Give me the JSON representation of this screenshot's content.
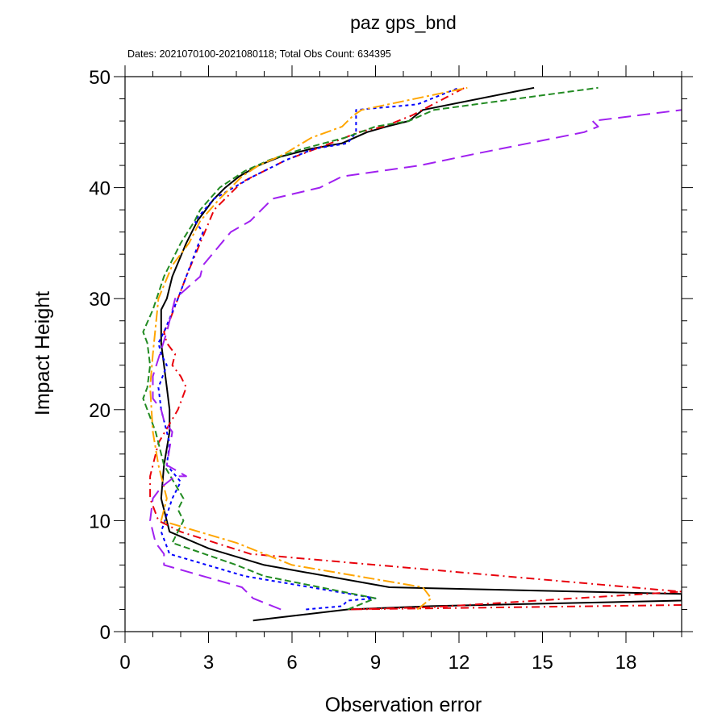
{
  "chart_data": {
    "type": "line",
    "title": "paz gps_bnd",
    "subtitle": "Dates: 2021070100-2021080118; Total Obs Count: 634395",
    "xlabel": "Observation error",
    "ylabel": "Impact Height",
    "xlim": [
      0,
      20
    ],
    "ylim": [
      0,
      50
    ],
    "xticks": [
      0,
      3,
      6,
      9,
      12,
      15,
      18
    ],
    "yticks": [
      0,
      10,
      20,
      30,
      40,
      50
    ],
    "colors": {
      "black": "#000000",
      "red": "#e8000b",
      "blue": "#0000ff",
      "green": "#228b22",
      "orange": "#ffa500",
      "purple": "#a020f0"
    },
    "series": [
      {
        "color": "#000000",
        "dash": "solid",
        "x": [
          4.6,
          8.0,
          11.0,
          20.0,
          20.0,
          9.5,
          5.0,
          3.0,
          1.6,
          1.3,
          1.4,
          1.6,
          1.6,
          1.5,
          1.4,
          1.3,
          1.3,
          1.3,
          1.3,
          1.5,
          1.7,
          2.2,
          2.6,
          2.9,
          3.2,
          3.6,
          4.1,
          4.8,
          5.6,
          6.7,
          7.8,
          8.7,
          9.4,
          10.2,
          10.7,
          14.7
        ],
        "y": [
          1,
          2,
          2.3,
          2.8,
          3.4,
          4,
          6,
          7.5,
          9,
          12,
          15,
          18,
          20,
          22,
          24,
          26,
          27,
          28,
          29,
          30,
          32,
          35,
          37,
          38,
          39,
          40,
          41,
          42,
          42.8,
          43.5,
          44,
          45,
          45.5,
          46,
          47,
          49
        ]
      },
      {
        "color": "#e8000b",
        "dash": "10,5,2,5",
        "x": [
          20.0,
          8.0,
          11.0,
          20.0,
          4.5,
          2.0,
          1.2,
          0.9,
          0.9,
          1.2,
          1.9,
          2.2,
          2.0,
          1.7,
          1.8,
          1.5,
          1.4,
          1.6,
          2.2,
          3.2,
          4.2,
          5.8,
          7.6,
          8.4,
          9.3,
          10.3,
          12.2
        ],
        "y": [
          2.4,
          2.0,
          2.2,
          3.6,
          7,
          9,
          10,
          12,
          14,
          17,
          20,
          22,
          23,
          24,
          25,
          26,
          27,
          28,
          32,
          38,
          40.5,
          42.5,
          44.2,
          45,
          45.5,
          46.5,
          49
        ]
      },
      {
        "color": "#0000ff",
        "dash": "4,4",
        "x": [
          6.5,
          7.8,
          8.0,
          9.0,
          4.3,
          1.6,
          1.3,
          1.7,
          2.0,
          1.5,
          1.6,
          1.3,
          1.2,
          1.5,
          1.3,
          1.2,
          1.4,
          1.9,
          2.8,
          2.5,
          3.2,
          4.6,
          5.8,
          6.8,
          8.0,
          8.3,
          8.3,
          10.5,
          12.0
        ],
        "y": [
          2,
          2.3,
          2.8,
          3,
          5,
          7,
          9,
          12,
          13.5,
          15,
          17,
          20,
          22,
          24,
          25,
          26,
          27,
          30,
          36,
          37,
          39,
          41,
          42.5,
          43.5,
          44,
          45,
          47,
          47.5,
          49
        ]
      },
      {
        "color": "#228b22",
        "dash": "8,4",
        "x": [
          8.0,
          9.0,
          5.0,
          4.0,
          1.7,
          2.1,
          1.9,
          2.1,
          1.4,
          1.1,
          0.8,
          0.65,
          0.8,
          0.9,
          0.8,
          0.65,
          1.0,
          1.4,
          2.0,
          2.5,
          2.7,
          3.4,
          4.3,
          5.2,
          6.4,
          7.9,
          9.0,
          10.2,
          11.1,
          17.0
        ],
        "y": [
          2,
          3,
          5,
          6,
          8,
          10,
          11,
          12,
          15,
          18,
          20,
          21,
          22,
          24,
          26,
          27,
          29,
          32,
          35,
          37,
          38,
          40,
          41.5,
          42.5,
          43.5,
          44.5,
          45.5,
          46,
          47,
          49
        ]
      },
      {
        "color": "#ffa500",
        "dash": "14,4,3,4",
        "x": [
          10.5,
          11.0,
          10.7,
          6.0,
          4.0,
          1.3,
          1.5,
          1.2,
          1.0,
          0.9,
          1.0,
          1.2,
          1.7,
          2.3,
          2.7,
          3.4,
          4.2,
          4.8,
          5.7,
          6.7,
          7.8,
          8.2,
          8.5,
          12.3
        ],
        "y": [
          2,
          3,
          4,
          6,
          8,
          10,
          12,
          15,
          18,
          22,
          25,
          30,
          33,
          35,
          37,
          39,
          41,
          42,
          43,
          44.5,
          45.5,
          46.5,
          47,
          49
        ]
      },
      {
        "color": "#a020f0",
        "dash": "16,8",
        "x": [
          5.6,
          4.6,
          4.2,
          1.4,
          1.4,
          1.1,
          0.9,
          1.0,
          1.3,
          1.8,
          2.2,
          1.5,
          1.7,
          1.4,
          1.3,
          1.0,
          1.0,
          1.5,
          1.8,
          2.7,
          2.8,
          3.8,
          4.5,
          5.3,
          7.0,
          7.8,
          10.6,
          12.5,
          16.5,
          17.0,
          16.8,
          20.0
        ],
        "y": [
          2,
          3,
          4,
          6,
          7,
          8,
          10,
          12,
          13,
          14,
          14,
          15,
          18,
          19,
          20,
          21,
          23,
          27,
          30,
          32,
          33,
          36,
          37,
          39,
          40,
          41,
          42,
          43,
          45,
          45.5,
          46,
          47
        ]
      }
    ]
  }
}
